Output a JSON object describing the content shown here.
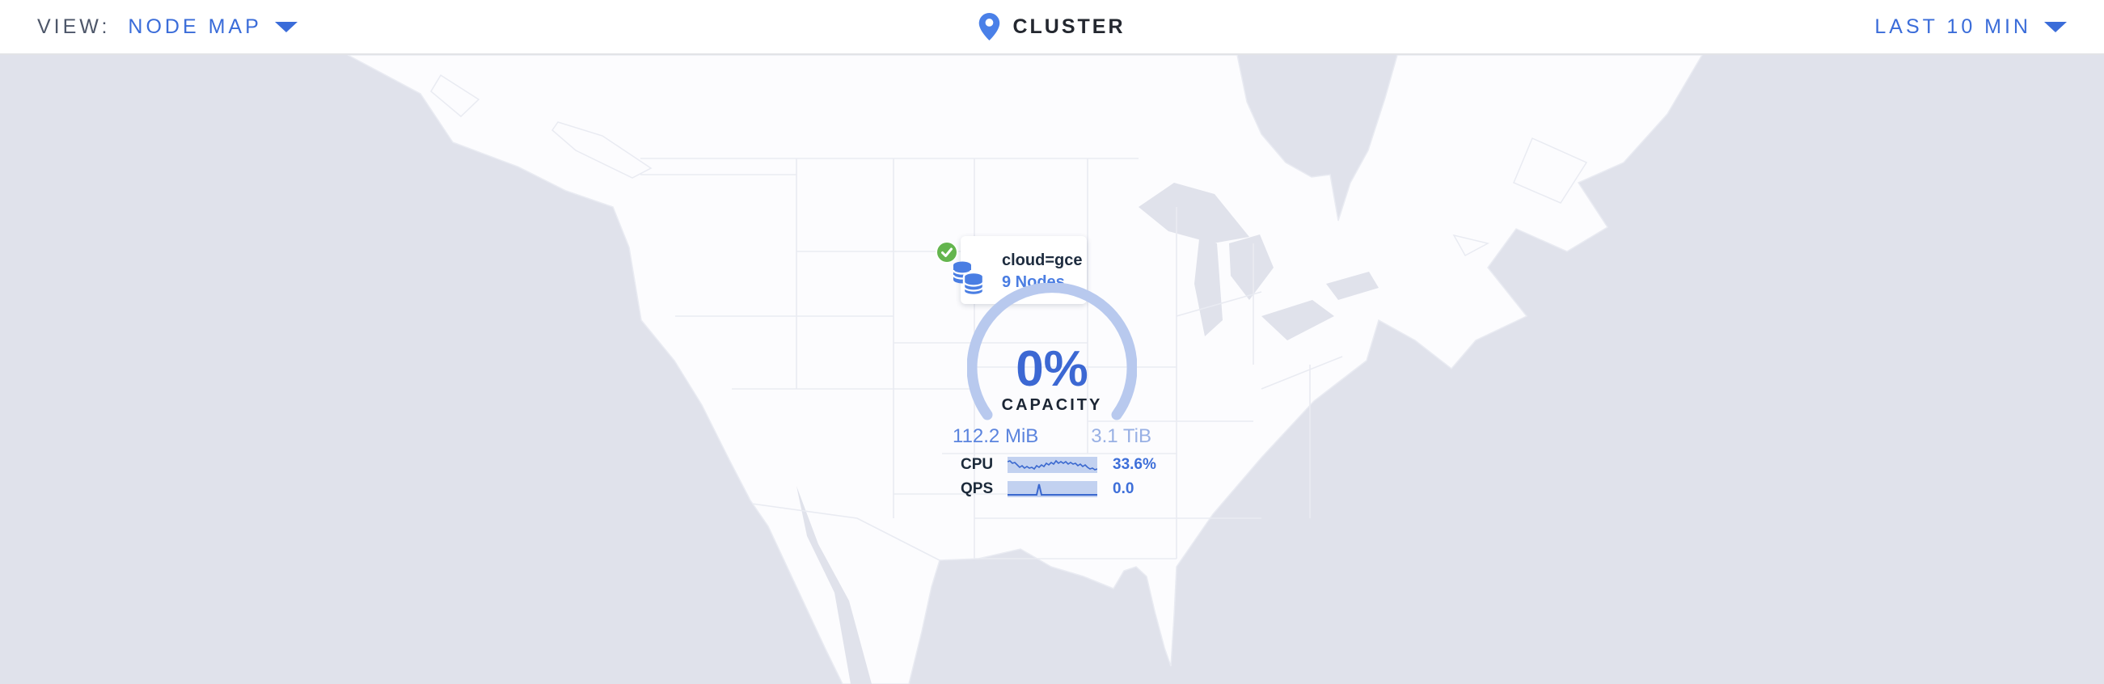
{
  "topbar": {
    "view_label": "VIEW:",
    "view_value": "NODE MAP",
    "cluster_label": "CLUSTER",
    "time_range": "LAST 10 MIN"
  },
  "node_marker": {
    "locality": "cloud=gce",
    "node_count": "9 Nodes",
    "status": "healthy"
  },
  "capacity_gauge": {
    "percent": "0%",
    "label": "CAPACITY",
    "used": "112.2 MiB",
    "total": "3.1 TiB"
  },
  "metrics": [
    {
      "label": "CPU",
      "value": "33.6%",
      "spark": [
        [
          0,
          6
        ],
        [
          3,
          5
        ],
        [
          6,
          8
        ],
        [
          9,
          7
        ],
        [
          12,
          10
        ],
        [
          15,
          13
        ],
        [
          18,
          11
        ],
        [
          21,
          14
        ],
        [
          24,
          12
        ],
        [
          27,
          14
        ],
        [
          30,
          13
        ],
        [
          33,
          15
        ],
        [
          36,
          11
        ],
        [
          39,
          13
        ],
        [
          42,
          10
        ],
        [
          45,
          12
        ],
        [
          48,
          8
        ],
        [
          51,
          10
        ],
        [
          54,
          7
        ],
        [
          57,
          9
        ],
        [
          60,
          5
        ],
        [
          63,
          8
        ],
        [
          66,
          6
        ],
        [
          69,
          8
        ],
        [
          72,
          6
        ],
        [
          75,
          9
        ],
        [
          78,
          7
        ],
        [
          81,
          9
        ],
        [
          84,
          8
        ],
        [
          87,
          11
        ],
        [
          90,
          9
        ],
        [
          93,
          12
        ],
        [
          96,
          10
        ],
        [
          99,
          13
        ],
        [
          102,
          15
        ],
        [
          105,
          14
        ],
        [
          108,
          16
        ],
        [
          111,
          15
        ]
      ]
    },
    {
      "label": "QPS",
      "value": "0.0",
      "spark": [
        [
          0,
          17
        ],
        [
          36,
          17
        ],
        [
          39,
          4
        ],
        [
          42,
          17
        ],
        [
          111,
          17
        ]
      ]
    }
  ],
  "colors": {
    "accent_blue": "#3a6cd9",
    "link_blue": "#4a7de2",
    "gauge_arc": "#b8c9ee",
    "spark_bg": "#c2d1f0",
    "spark_line": "#3a68cf",
    "ocean": "#e0e2eb",
    "land": "#fcfcfe",
    "healthy_green": "#64b54e",
    "dark_text": "#1c2a3a"
  }
}
